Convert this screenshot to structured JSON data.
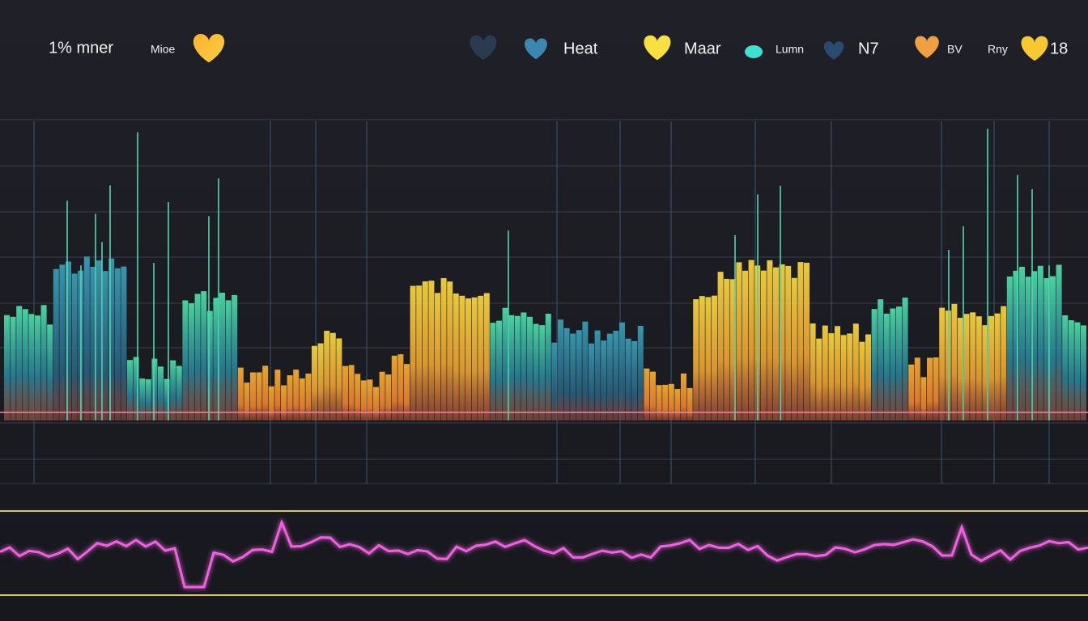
{
  "header": {
    "items": [
      {
        "label": "1% mner"
      },
      {
        "label": "Mioe"
      },
      {
        "label": "Heat"
      },
      {
        "label": "Maar"
      },
      {
        "label": "Lumn"
      },
      {
        "label": "N7"
      },
      {
        "label": "BV"
      },
      {
        "label": "Rny"
      },
      {
        "label": "18"
      }
    ]
  }
}
